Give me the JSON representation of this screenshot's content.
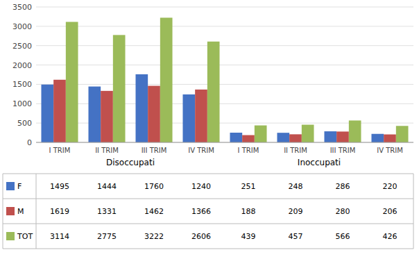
{
  "chart_data": {
    "type": "bar",
    "categories": [
      "I TRIM",
      "II TRIM",
      "III TRIM",
      "IV TRIM",
      "I TRIM",
      "II TRIM",
      "III TRIM",
      "IV TRIM"
    ],
    "series": [
      {
        "name": "F",
        "color": "#4472c4",
        "values": [
          1495,
          1444,
          1760,
          1240,
          251,
          248,
          286,
          220
        ]
      },
      {
        "name": "M",
        "color": "#c0504d",
        "values": [
          1619,
          1331,
          1462,
          1366,
          188,
          209,
          280,
          206
        ]
      },
      {
        "name": "TOT",
        "color": "#9bbb59",
        "values": [
          3114,
          2775,
          3222,
          2606,
          439,
          457,
          566,
          426
        ]
      }
    ],
    "ylim": [
      0,
      3500
    ],
    "yticks": [
      0,
      500,
      1000,
      1500,
      2000,
      2500,
      3000,
      3500
    ],
    "grid": true,
    "annotations": [
      "Disoccupati",
      "Inoccupati"
    ]
  }
}
